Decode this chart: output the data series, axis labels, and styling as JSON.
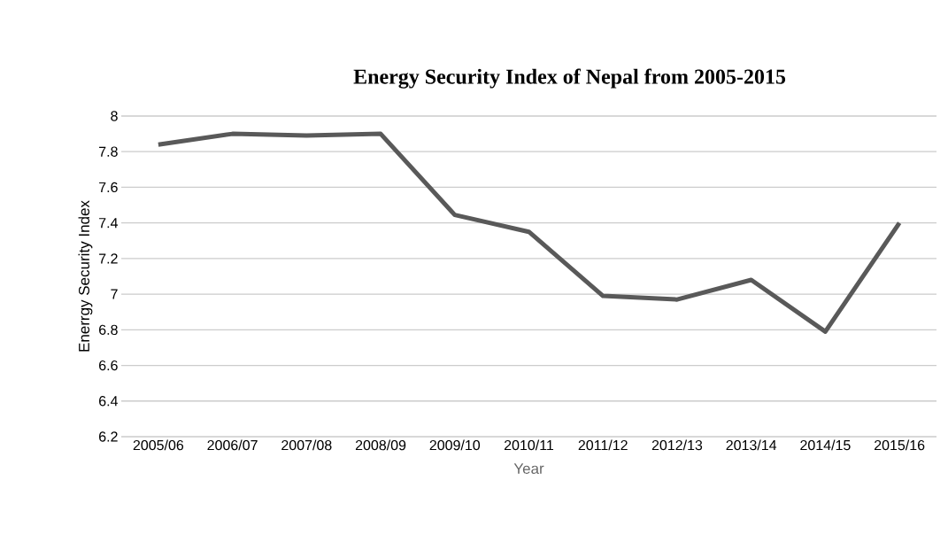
{
  "chart_data": {
    "type": "line",
    "title": "Energy Security Index of Nepal from 2005-2015",
    "xlabel": "Year",
    "ylabel": "Enerrgy Security Index",
    "categories": [
      "2005/06",
      "2006/07",
      "2007/08",
      "2008/09",
      "2009/10",
      "2010/11",
      "2011/12",
      "2012/13",
      "2013/14",
      "2014/15",
      "2015/16"
    ],
    "values": [
      7.84,
      7.9,
      7.89,
      7.9,
      7.445,
      7.35,
      6.99,
      6.97,
      7.08,
      6.79,
      7.4
    ],
    "color": "#595959",
    "ylim": [
      6.2,
      8
    ],
    "yticks": [
      6.2,
      6.4,
      6.6,
      6.8,
      7,
      7.2,
      7.4,
      7.6,
      7.8,
      8
    ],
    "grid": "y",
    "marker": "none",
    "line_style": "solid"
  }
}
